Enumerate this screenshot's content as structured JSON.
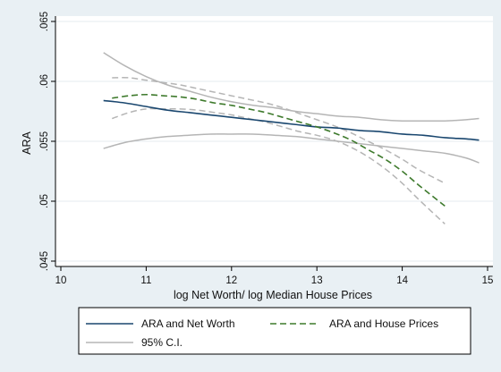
{
  "chart_data": {
    "type": "line",
    "xlabel": "log Net Worth/ log Median House Prices",
    "ylabel": "ARA",
    "xlim": [
      10,
      15
    ],
    "ylim": [
      0.045,
      0.065
    ],
    "xticks": [
      10,
      11,
      12,
      13,
      14,
      15
    ],
    "xtick_labels": [
      "10",
      "11",
      "12",
      "13",
      "14",
      "15"
    ],
    "yticks": [
      0.045,
      0.05,
      0.055,
      0.06,
      0.065
    ],
    "ytick_labels": [
      ".045",
      ".05",
      ".055",
      ".06",
      ".065"
    ],
    "grid": "horizontal",
    "legend_position": "bottom",
    "series": [
      {
        "name": "ARA and Net Worth",
        "color": "#1a476f",
        "dash": "solid",
        "x": [
          10.5,
          10.75,
          11.0,
          11.25,
          11.5,
          11.75,
          12.0,
          12.25,
          12.5,
          12.75,
          13.0,
          13.25,
          13.5,
          13.75,
          14.0,
          14.25,
          14.5,
          14.75,
          14.9
        ],
        "y": [
          0.0584,
          0.0582,
          0.0579,
          0.0576,
          0.0574,
          0.0572,
          0.057,
          0.0568,
          0.0566,
          0.0564,
          0.0562,
          0.0561,
          0.0559,
          0.0558,
          0.0556,
          0.0555,
          0.0553,
          0.0552,
          0.0551
        ]
      },
      {
        "name": "ARA and House Prices",
        "color": "#3e7a2c",
        "dash": "dashed",
        "x": [
          10.6,
          10.8,
          11.0,
          11.2,
          11.4,
          11.6,
          11.8,
          12.0,
          12.2,
          12.4,
          12.6,
          12.8,
          13.0,
          13.2,
          13.4,
          13.6,
          13.8,
          14.0,
          14.2,
          14.5
        ],
        "y": [
          0.0586,
          0.0588,
          0.0589,
          0.0588,
          0.0587,
          0.0585,
          0.0582,
          0.058,
          0.0577,
          0.0574,
          0.057,
          0.0566,
          0.0562,
          0.0557,
          0.0551,
          0.0543,
          0.0535,
          0.0525,
          0.0513,
          0.0496
        ]
      }
    ],
    "confidence_bands": {
      "name": "95% C.I.",
      "color": "#b5b5b5",
      "bands": [
        {
          "dash": "solid",
          "x": [
            10.5,
            10.75,
            11.0,
            11.25,
            11.5,
            11.75,
            12.0,
            12.25,
            12.5,
            12.75,
            13.0,
            13.25,
            13.5,
            13.75,
            14.0,
            14.25,
            14.5,
            14.75,
            14.9
          ],
          "upper": [
            0.0624,
            0.0613,
            0.0604,
            0.0597,
            0.0592,
            0.0587,
            0.0583,
            0.058,
            0.0578,
            0.0575,
            0.0573,
            0.0571,
            0.057,
            0.0568,
            0.0567,
            0.0567,
            0.0567,
            0.0568,
            0.0569
          ],
          "lower": [
            0.0544,
            0.0549,
            0.0552,
            0.0554,
            0.0555,
            0.0556,
            0.0556,
            0.0556,
            0.0555,
            0.0554,
            0.0552,
            0.055,
            0.0548,
            0.0546,
            0.0544,
            0.0542,
            0.054,
            0.0536,
            0.0532
          ]
        },
        {
          "dash": "dashed",
          "x": [
            10.6,
            10.8,
            11.0,
            11.2,
            11.4,
            11.6,
            11.8,
            12.0,
            12.2,
            12.4,
            12.6,
            12.8,
            13.0,
            13.2,
            13.4,
            13.6,
            13.8,
            14.0,
            14.2,
            14.5
          ],
          "upper": [
            0.0603,
            0.0603,
            0.0601,
            0.0599,
            0.0597,
            0.0594,
            0.0591,
            0.0588,
            0.0585,
            0.0582,
            0.0578,
            0.0573,
            0.0568,
            0.0563,
            0.0557,
            0.055,
            0.0543,
            0.0535,
            0.0526,
            0.0515
          ],
          "lower": [
            0.0569,
            0.0574,
            0.0577,
            0.0577,
            0.0577,
            0.0576,
            0.0574,
            0.0572,
            0.0569,
            0.0566,
            0.0562,
            0.0558,
            0.0555,
            0.0551,
            0.0545,
            0.0537,
            0.0527,
            0.0515,
            0.0501,
            0.0481
          ]
        }
      ]
    }
  }
}
